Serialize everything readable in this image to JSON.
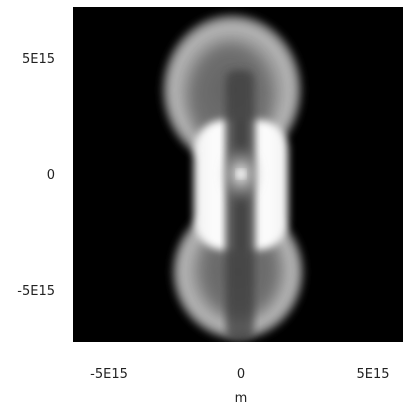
{
  "chart_data": {
    "type": "heatmap",
    "colormap": "grayscale",
    "background": "#000000",
    "title": "",
    "xlabel": "m",
    "ylabel": "",
    "xlim": [
      -7300000000000000.0,
      7300000000000000.0
    ],
    "ylim": [
      -7300000000000000.0,
      7300000000000000.0
    ],
    "xticks": [
      {
        "value": -5000000000000000.0,
        "label": "-5E15"
      },
      {
        "value": 0,
        "label": "0"
      },
      {
        "value": 5000000000000000.0,
        "label": "5E15"
      }
    ],
    "yticks": [
      {
        "value": 5000000000000000.0,
        "label": "5E15"
      },
      {
        "value": 0,
        "label": "0"
      },
      {
        "value": -5000000000000000.0,
        "label": "-5E15"
      }
    ],
    "grid": false,
    "legend": "none"
  }
}
